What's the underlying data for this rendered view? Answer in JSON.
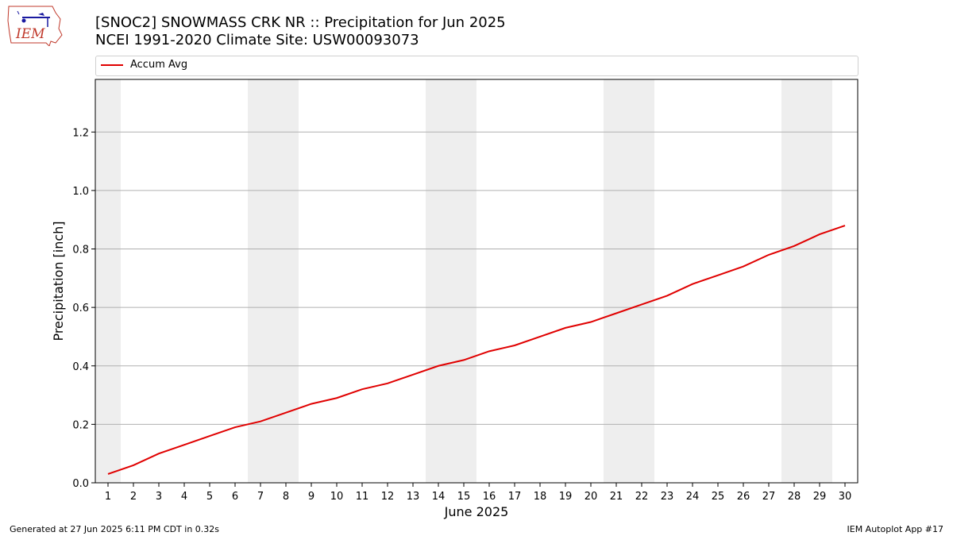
{
  "logo": {
    "text": "IEM",
    "icon": "iowa-state-outline-icon"
  },
  "header": {
    "title_line1": "[SNOC2] SNOWMASS CRK NR :: Precipitation for Jun 2025",
    "title_line2": "NCEI 1991-2020 Climate Site: USW00093073"
  },
  "footer": {
    "left": "Generated at 27 Jun 2025 6:11 PM CDT in 0.32s",
    "right": "IEM Autoplot App #17"
  },
  "chart_data": {
    "type": "line",
    "xlabel": "June 2025",
    "ylabel": "Precipitation [inch]",
    "x": [
      1,
      2,
      3,
      4,
      5,
      6,
      7,
      8,
      9,
      10,
      11,
      12,
      13,
      14,
      15,
      16,
      17,
      18,
      19,
      20,
      21,
      22,
      23,
      24,
      25,
      26,
      27,
      28,
      29,
      30
    ],
    "xlim": [
      0.5,
      30.5
    ],
    "ylim": [
      0,
      1.38
    ],
    "yticks": [
      0.0,
      0.2,
      0.4,
      0.6,
      0.8,
      1.0,
      1.2
    ],
    "ytick_labels": [
      "0.0",
      "0.2",
      "0.4",
      "0.6",
      "0.8",
      "1.0",
      "1.2"
    ],
    "grid": "horizontal",
    "weekend_shading": [
      [
        0.5,
        1.5
      ],
      [
        6.5,
        8.5
      ],
      [
        13.5,
        15.5
      ],
      [
        20.5,
        22.5
      ],
      [
        27.5,
        29.5
      ]
    ],
    "legend_position": "top",
    "series": [
      {
        "name": "Accum Avg",
        "color": "#e00000",
        "values": [
          0.03,
          0.06,
          0.1,
          0.13,
          0.16,
          0.19,
          0.21,
          0.24,
          0.27,
          0.29,
          0.32,
          0.34,
          0.37,
          0.4,
          0.42,
          0.45,
          0.47,
          0.5,
          0.53,
          0.55,
          0.58,
          0.61,
          0.64,
          0.68,
          0.71,
          0.74,
          0.78,
          0.81,
          0.85,
          0.88
        ]
      }
    ]
  }
}
